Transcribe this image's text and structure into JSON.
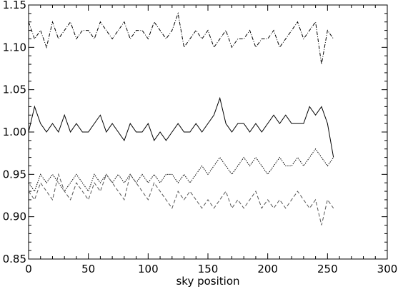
{
  "chart_data": {
    "type": "line",
    "title": "",
    "xlabel": "sky position",
    "ylabel": "",
    "xlim": [
      0,
      300
    ],
    "ylim": [
      0.85,
      1.15
    ],
    "grid": false,
    "xticks": [
      0,
      50,
      100,
      150,
      200,
      250,
      300
    ],
    "xtick_labels": [
      "0",
      "50",
      "100",
      "150",
      "200",
      "250",
      "300"
    ],
    "yticks": [
      0.85,
      0.9,
      0.95,
      1.0,
      1.05,
      1.1,
      1.15
    ],
    "ytick_labels": [
      "0.85",
      "0.90",
      "0.95",
      "1.00",
      "1.05",
      "1.10",
      "1.15"
    ],
    "x_step": 5,
    "series": [
      {
        "style": "dash-dot",
        "color": "#000000",
        "x": [
          0,
          5,
          10,
          15,
          20,
          25,
          30,
          35,
          40,
          45,
          50,
          55,
          60,
          65,
          70,
          75,
          80,
          85,
          90,
          95,
          100,
          105,
          110,
          115,
          120,
          125,
          130,
          135,
          140,
          145,
          150,
          155,
          160,
          165,
          170,
          175,
          180,
          185,
          190,
          195,
          200,
          205,
          210,
          215,
          220,
          225,
          230,
          235,
          240,
          245,
          250,
          255
        ],
        "values": [
          1.13,
          1.11,
          1.12,
          1.1,
          1.13,
          1.11,
          1.12,
          1.13,
          1.11,
          1.12,
          1.12,
          1.11,
          1.13,
          1.12,
          1.11,
          1.12,
          1.13,
          1.11,
          1.12,
          1.12,
          1.11,
          1.13,
          1.12,
          1.11,
          1.12,
          1.14,
          1.1,
          1.11,
          1.12,
          1.11,
          1.12,
          1.1,
          1.11,
          1.12,
          1.1,
          1.11,
          1.11,
          1.12,
          1.1,
          1.11,
          1.11,
          1.12,
          1.1,
          1.11,
          1.12,
          1.13,
          1.11,
          1.12,
          1.13,
          1.08,
          1.12,
          1.11
        ]
      },
      {
        "style": "solid",
        "color": "#000000",
        "x": [
          0,
          5,
          10,
          15,
          20,
          25,
          30,
          35,
          40,
          45,
          50,
          55,
          60,
          65,
          70,
          75,
          80,
          85,
          90,
          95,
          100,
          105,
          110,
          115,
          120,
          125,
          130,
          135,
          140,
          145,
          150,
          155,
          160,
          165,
          170,
          175,
          180,
          185,
          190,
          195,
          200,
          205,
          210,
          215,
          220,
          225,
          230,
          235,
          240,
          245,
          250,
          255
        ],
        "values": [
          1.0,
          1.03,
          1.01,
          1.0,
          1.01,
          1.0,
          1.02,
          1.0,
          1.01,
          1.0,
          1.0,
          1.01,
          1.02,
          1.0,
          1.01,
          1.0,
          0.99,
          1.01,
          1.0,
          1.0,
          1.01,
          0.99,
          1.0,
          0.99,
          1.0,
          1.01,
          1.0,
          1.0,
          1.01,
          1.0,
          1.01,
          1.02,
          1.04,
          1.01,
          1.0,
          1.01,
          1.01,
          1.0,
          1.01,
          1.0,
          1.01,
          1.02,
          1.01,
          1.02,
          1.01,
          1.01,
          1.01,
          1.03,
          1.02,
          1.03,
          1.01,
          0.97
        ]
      },
      {
        "style": "dotted",
        "color": "#000000",
        "x": [
          0,
          5,
          10,
          15,
          20,
          25,
          30,
          35,
          40,
          45,
          50,
          55,
          60,
          65,
          70,
          75,
          80,
          85,
          90,
          95,
          100,
          105,
          110,
          115,
          120,
          125,
          130,
          135,
          140,
          145,
          150,
          155,
          160,
          165,
          170,
          175,
          180,
          185,
          190,
          195,
          200,
          205,
          210,
          215,
          220,
          225,
          230,
          235,
          240,
          245,
          250,
          255
        ],
        "values": [
          0.94,
          0.93,
          0.95,
          0.94,
          0.95,
          0.94,
          0.93,
          0.94,
          0.95,
          0.94,
          0.93,
          0.95,
          0.94,
          0.95,
          0.94,
          0.95,
          0.94,
          0.95,
          0.94,
          0.95,
          0.94,
          0.95,
          0.94,
          0.95,
          0.95,
          0.94,
          0.95,
          0.94,
          0.95,
          0.96,
          0.95,
          0.96,
          0.97,
          0.96,
          0.95,
          0.96,
          0.97,
          0.96,
          0.97,
          0.96,
          0.95,
          0.96,
          0.97,
          0.96,
          0.96,
          0.97,
          0.96,
          0.97,
          0.98,
          0.97,
          0.96,
          0.97
        ]
      },
      {
        "style": "dash",
        "color": "#555555",
        "x": [
          0,
          5,
          10,
          15,
          20,
          25,
          30,
          35,
          40,
          45,
          50,
          55,
          60,
          65,
          70,
          75,
          80,
          85,
          90,
          95,
          100,
          105,
          110,
          115,
          120,
          125,
          130,
          135,
          140,
          145,
          150,
          155,
          160,
          165,
          170,
          175,
          180,
          185,
          190,
          195,
          200,
          205,
          210,
          215,
          220,
          225,
          230,
          235,
          240,
          245,
          250,
          255
        ],
        "values": [
          0.93,
          0.92,
          0.94,
          0.93,
          0.92,
          0.95,
          0.93,
          0.92,
          0.94,
          0.93,
          0.92,
          0.94,
          0.93,
          0.95,
          0.94,
          0.93,
          0.92,
          0.95,
          0.94,
          0.93,
          0.92,
          0.94,
          0.93,
          0.92,
          0.91,
          0.93,
          0.92,
          0.93,
          0.92,
          0.91,
          0.92,
          0.91,
          0.92,
          0.93,
          0.91,
          0.92,
          0.91,
          0.92,
          0.93,
          0.91,
          0.92,
          0.91,
          0.92,
          0.91,
          0.92,
          0.93,
          0.92,
          0.91,
          0.92,
          0.89,
          0.92,
          0.91
        ]
      }
    ]
  }
}
